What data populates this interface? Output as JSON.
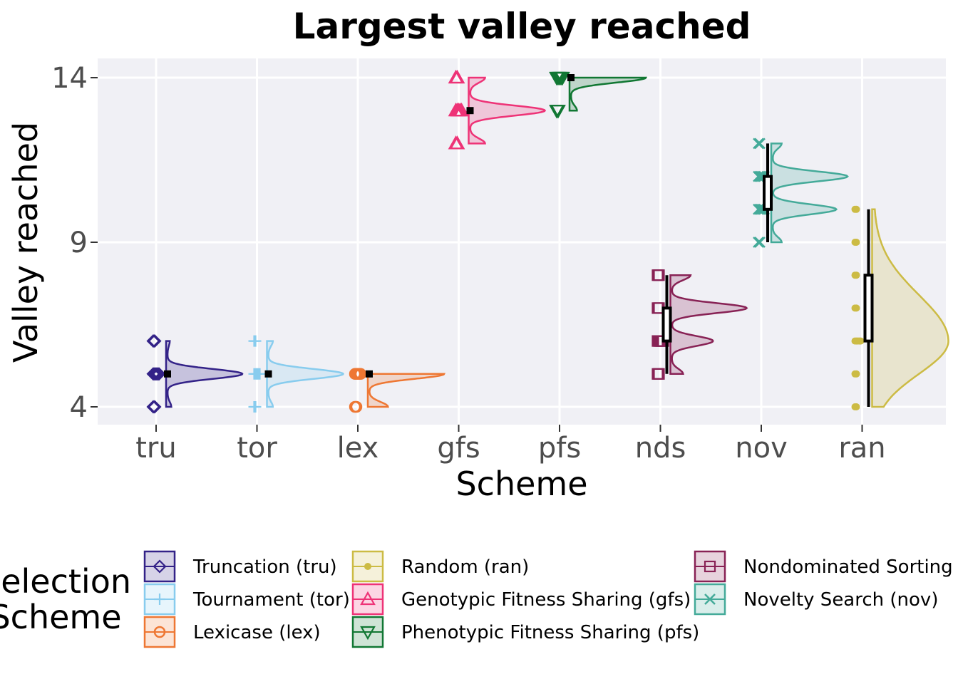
{
  "chart_data": {
    "type": "raincloud",
    "title": "Largest valley reached",
    "xlabel": "Scheme",
    "ylabel": "Valley reached",
    "categories": [
      "tru",
      "tor",
      "lex",
      "gfs",
      "pfs",
      "nds",
      "nov",
      "ran"
    ],
    "yticks": [
      4,
      9,
      14
    ],
    "ylim": [
      3.2,
      14.6
    ],
    "grid": true,
    "legend": {
      "title_lines": [
        "Selection",
        "Scheme"
      ],
      "placement": "bottom",
      "entries": [
        {
          "key": "tru",
          "label": "Truncation (tru)"
        },
        {
          "key": "tor",
          "label": "Tournament (tor)"
        },
        {
          "key": "lex",
          "label": "Lexicase (lex)"
        },
        {
          "key": "ran",
          "label": "Random (ran)"
        },
        {
          "key": "gfs",
          "label": "Genotypic Fitness Sharing (gfs)"
        },
        {
          "key": "pfs",
          "label": "Phenotypic Fitness Sharing (pfs)"
        },
        {
          "key": "nds",
          "label": "Nondominated Sorting (nds)"
        },
        {
          "key": "nov",
          "label": "Novelty Search (nov)"
        }
      ]
    },
    "series": [
      {
        "key": "tru",
        "color": "#332288",
        "marker": "diamond",
        "points": [
          4,
          5,
          6
        ],
        "density": [
          [
            4,
            0.05
          ],
          [
            5,
            1.0
          ],
          [
            6,
            0.03
          ]
        ],
        "min": 4,
        "q1": 5,
        "median": 5,
        "q3": 5,
        "max": 6,
        "mean": 5.0,
        "box": false
      },
      {
        "key": "tor",
        "color": "#88CCEE",
        "marker": "plus",
        "points": [
          4,
          5,
          6
        ],
        "density": [
          [
            4,
            0.06
          ],
          [
            5,
            1.0
          ],
          [
            6,
            0.06
          ]
        ],
        "min": 4,
        "q1": 5,
        "median": 5,
        "q3": 5,
        "max": 6,
        "mean": 5.0,
        "box": false
      },
      {
        "key": "lex",
        "color": "#EE7733",
        "marker": "circle-cross",
        "points": [
          4,
          5
        ],
        "density": [
          [
            4,
            0.25
          ],
          [
            5,
            1.0
          ]
        ],
        "min": 4,
        "q1": 5,
        "median": 5,
        "q3": 5,
        "max": 5,
        "mean": 5.0,
        "box": false
      },
      {
        "key": "gfs",
        "color": "#EE3377",
        "marker": "triangle-up",
        "points": [
          12,
          13,
          14
        ],
        "density": [
          [
            12,
            0.2
          ],
          [
            13,
            1.0
          ],
          [
            14,
            0.2
          ]
        ],
        "min": 12,
        "q1": 13,
        "median": 13,
        "q3": 13,
        "max": 14,
        "mean": 13.0,
        "box": false
      },
      {
        "key": "pfs",
        "color": "#117733",
        "marker": "triangle-down",
        "points": [
          13,
          14
        ],
        "density": [
          [
            13,
            0.08
          ],
          [
            14,
            1.0
          ]
        ],
        "min": 13,
        "q1": 14,
        "median": 14,
        "q3": 14,
        "max": 14,
        "mean": 14.0,
        "box": false
      },
      {
        "key": "nds",
        "color": "#882255",
        "marker": "square-cross",
        "points": [
          5,
          6,
          7,
          8
        ],
        "density": [
          [
            5,
            0.15
          ],
          [
            6,
            0.55
          ],
          [
            7,
            1.0
          ],
          [
            8,
            0.25
          ]
        ],
        "min": 5,
        "q1": 6,
        "median": 6.5,
        "q3": 7,
        "max": 8,
        "mean": 6.6,
        "box": true
      },
      {
        "key": "nov",
        "color": "#44AA99",
        "marker": "x",
        "points": [
          9,
          10,
          11,
          12
        ],
        "density": [
          [
            9,
            0.12
          ],
          [
            10,
            0.85
          ],
          [
            11,
            1.0
          ],
          [
            12,
            0.12
          ]
        ],
        "min": 9,
        "q1": 10,
        "median": 11,
        "q3": 11,
        "max": 12,
        "mean": 10.6,
        "box": true
      },
      {
        "key": "ran",
        "color": "#CCBB44",
        "marker": "circle",
        "points": [
          4,
          5,
          6,
          7,
          8,
          9,
          10
        ],
        "density": "smooth",
        "density_mode": 6,
        "min": 4,
        "q1": 6,
        "median": 6,
        "q3": 8,
        "max": 10,
        "mean": 6.8,
        "box": true
      }
    ]
  }
}
